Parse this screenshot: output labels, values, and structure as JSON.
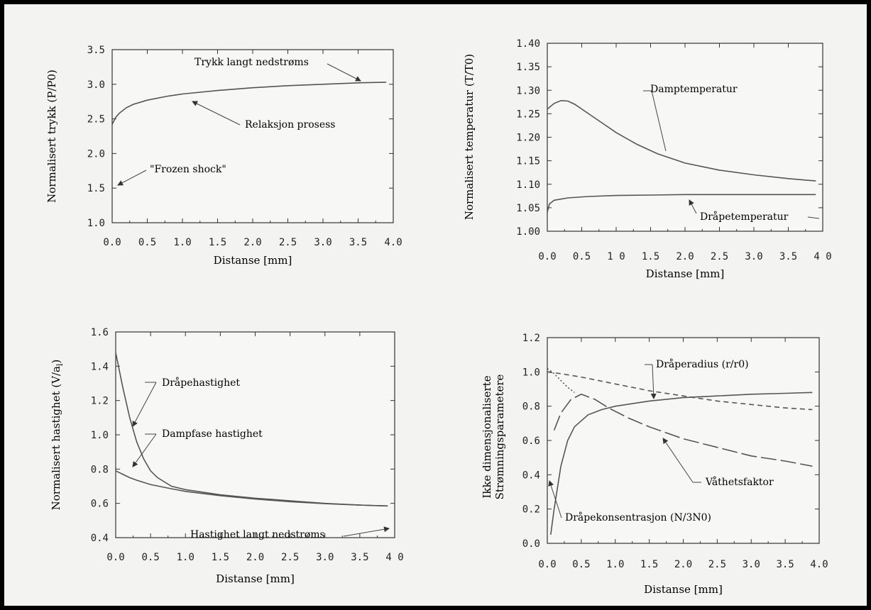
{
  "chart_data": [
    {
      "type": "line",
      "xlabel": "Distanse [mm]",
      "ylabel": "Normalisert trykk (P/P0)",
      "xlim": [
        0,
        4
      ],
      "ylim": [
        1.0,
        3.5
      ],
      "xticks": [
        0.0,
        0.5,
        1.0,
        1.5,
        2.0,
        2.5,
        3.0,
        3.5,
        4.0
      ],
      "xtick_labels": [
        "0.0",
        "0.5",
        "1.0",
        "1.5",
        "2.0",
        "2.5",
        "3.0",
        "3.5",
        "4.0"
      ],
      "yticks": [
        1.0,
        1.5,
        2.0,
        2.5,
        3.0,
        3.5
      ],
      "ytick_labels": [
        "1.0",
        "1.5",
        "2.0",
        "2.5",
        "3.0",
        "3.5"
      ],
      "series": [
        {
          "style": "solid",
          "x": [
            0.0,
            0.05,
            0.1,
            0.2,
            0.3,
            0.5,
            0.8,
            1.0,
            1.5,
            2.0,
            2.5,
            3.0,
            3.5,
            3.9
          ],
          "y": [
            2.42,
            2.52,
            2.58,
            2.66,
            2.71,
            2.77,
            2.83,
            2.86,
            2.91,
            2.95,
            2.98,
            3.0,
            3.02,
            3.03
          ]
        }
      ],
      "annotations": [
        {
          "text": "Trykk langt nedstrøms",
          "x": 3.65,
          "y": 3.04
        },
        {
          "text": "Relaksjon prosess",
          "x": 1.05,
          "y": 2.86
        },
        {
          "text": "\"Frozen shock\"",
          "x": 0.02,
          "y": 1.6
        }
      ]
    },
    {
      "type": "line",
      "xlabel": "Distanse [mm]",
      "ylabel": "Normalisert temperatur (T/T0)",
      "xlim": [
        0,
        4
      ],
      "ylim": [
        1.0,
        1.4
      ],
      "xticks": [
        0.0,
        0.5,
        1.0,
        1.5,
        2.0,
        2.5,
        3.0,
        3.5,
        4.0
      ],
      "xtick_labels": [
        "0.0",
        "0.5",
        "1 0",
        "1.5",
        "2.0",
        "2.5",
        "3.0",
        "3.5",
        "4 0"
      ],
      "yticks": [
        1.0,
        1.05,
        1.1,
        1.15,
        1.2,
        1.25,
        1.3,
        1.35,
        1.4
      ],
      "ytick_labels": [
        "1.00",
        "1.05",
        "1.10",
        "1.15",
        "1.20",
        "1.25",
        "1.30",
        "1.35",
        "1.40"
      ],
      "series": [
        {
          "name": "Damptemperatur",
          "style": "solid",
          "x": [
            0.0,
            0.1,
            0.2,
            0.3,
            0.4,
            0.6,
            0.8,
            1.0,
            1.3,
            1.6,
            2.0,
            2.5,
            3.0,
            3.5,
            3.9
          ],
          "y": [
            1.26,
            1.272,
            1.278,
            1.277,
            1.27,
            1.25,
            1.23,
            1.21,
            1.185,
            1.165,
            1.145,
            1.13,
            1.12,
            1.112,
            1.107
          ]
        },
        {
          "name": "Dråpetemperatur",
          "style": "solid",
          "x": [
            0.0,
            0.03,
            0.1,
            0.3,
            0.6,
            1.0,
            1.5,
            2.0,
            2.5,
            3.0,
            3.5,
            3.9
          ],
          "y": [
            1.04,
            1.058,
            1.066,
            1.071,
            1.074,
            1.076,
            1.077,
            1.078,
            1.078,
            1.078,
            1.078,
            1.078
          ]
        }
      ],
      "annotations": [
        {
          "text": "Damptemperatur",
          "x": 1.9,
          "y": 1.15
        },
        {
          "text": "Dråpetemperatur",
          "x": 1.8,
          "y": 1.078
        }
      ]
    },
    {
      "type": "line",
      "xlabel": "Distanse [mm]",
      "ylabel": "Normalisert hastighet (V/a",
      "ylabel_sub": "l",
      "ylabel_end": ")",
      "xlim": [
        0,
        4
      ],
      "ylim": [
        0.4,
        1.6
      ],
      "xticks": [
        0.0,
        0.5,
        1.0,
        1.5,
        2.0,
        2.5,
        3.0,
        3.5,
        4.0
      ],
      "xtick_labels": [
        "0.0",
        "0.5",
        "1.0",
        "1.5",
        "2.0",
        "2.5",
        "3.0",
        "3.5",
        "4 0"
      ],
      "yticks": [
        0.4,
        0.6,
        0.8,
        1.0,
        1.2,
        1.4,
        1.6
      ],
      "ytick_labels": [
        "0.4",
        "0.6",
        "0.8",
        "1.0",
        "1.2",
        "1.4",
        "1.6"
      ],
      "series": [
        {
          "name": "Dråpehastighet",
          "style": "solid",
          "x": [
            0.0,
            0.05,
            0.1,
            0.2,
            0.3,
            0.4,
            0.5,
            0.6,
            0.8,
            1.0,
            1.5,
            2.0,
            2.5,
            3.0,
            3.5,
            3.9
          ],
          "y": [
            1.48,
            1.38,
            1.28,
            1.1,
            0.96,
            0.86,
            0.79,
            0.75,
            0.7,
            0.68,
            0.65,
            0.63,
            0.615,
            0.6,
            0.59,
            0.585
          ]
        },
        {
          "name": "Dampfase hastighet",
          "style": "solid",
          "x": [
            0.0,
            0.1,
            0.2,
            0.3,
            0.5,
            0.8,
            1.0,
            1.5,
            2.0,
            2.5,
            3.0,
            3.5,
            3.9
          ],
          "y": [
            0.79,
            0.77,
            0.75,
            0.735,
            0.71,
            0.685,
            0.67,
            0.645,
            0.625,
            0.61,
            0.598,
            0.59,
            0.585
          ]
        }
      ],
      "annotations": [
        {
          "text": "Dråpehastighet",
          "x": 0.2,
          "y": 1.05
        },
        {
          "text": "Dampfase hastighet",
          "x": 0.05,
          "y": 0.78
        },
        {
          "text": "Hastighet langt nedstrøms",
          "x": 3.95,
          "y": 0.585
        }
      ]
    },
    {
      "type": "line",
      "xlabel": "Distanse [mm]",
      "ylabel": "Ikke dimensjonaliserte",
      "ylabel_line2": "Strømningsparametere",
      "xlim": [
        0,
        4
      ],
      "ylim": [
        0.0,
        1.2
      ],
      "xticks": [
        0.0,
        0.5,
        1.0,
        1.5,
        2.0,
        2.5,
        3.0,
        3.5,
        4.0
      ],
      "xtick_labels": [
        "0.0",
        "0.5",
        "1.0",
        "1.5",
        "2.0",
        "2.5",
        "3.0",
        "3.5",
        "4.0"
      ],
      "yticks": [
        0.0,
        0.2,
        0.4,
        0.6,
        0.8,
        1.0,
        1.2
      ],
      "ytick_labels": [
        "0.0",
        "0.2",
        "0.4",
        "0.6",
        "0.8",
        "1.0",
        "1.2"
      ],
      "series": [
        {
          "name": "Dråperadius (r/r0)",
          "style": "dashed",
          "x": [
            0.0,
            0.2,
            0.5,
            1.0,
            1.5,
            2.0,
            2.5,
            3.0,
            3.5,
            3.9
          ],
          "y": [
            1.0,
            0.99,
            0.97,
            0.93,
            0.89,
            0.86,
            0.83,
            0.81,
            0.79,
            0.78
          ]
        },
        {
          "name": "Dråpekonsentrasjon (N/3N0)",
          "style": "solid",
          "x": [
            0.05,
            0.1,
            0.2,
            0.3,
            0.4,
            0.6,
            0.8,
            1.0,
            1.5,
            2.0,
            2.5,
            3.0,
            3.5,
            3.9
          ],
          "y": [
            0.05,
            0.2,
            0.45,
            0.6,
            0.68,
            0.75,
            0.78,
            0.8,
            0.83,
            0.85,
            0.86,
            0.87,
            0.875,
            0.88
          ]
        },
        {
          "name": "Våthetsfaktor",
          "style": "long-dash",
          "x": [
            0.1,
            0.2,
            0.35,
            0.5,
            0.7,
            0.9,
            1.2,
            1.5,
            2.0,
            2.5,
            3.0,
            3.5,
            3.9
          ],
          "y": [
            0.66,
            0.76,
            0.84,
            0.87,
            0.84,
            0.79,
            0.73,
            0.68,
            0.61,
            0.56,
            0.51,
            0.48,
            0.45
          ]
        },
        {
          "style": "dotted",
          "x": [
            0.0,
            0.1,
            0.2,
            0.3,
            0.4
          ],
          "y": [
            1.02,
            0.99,
            0.95,
            0.91,
            0.88
          ]
        }
      ],
      "annotations": [
        {
          "text": "Dråperadius (r/r0)",
          "x": 1.6,
          "y": 0.87
        },
        {
          "text": "Våthetsfaktor",
          "x": 2.4,
          "y": 0.52
        },
        {
          "text": "Dråpekonsentrasjon (N/3N0)",
          "x": 0.12,
          "y": 0.3
        }
      ]
    }
  ]
}
